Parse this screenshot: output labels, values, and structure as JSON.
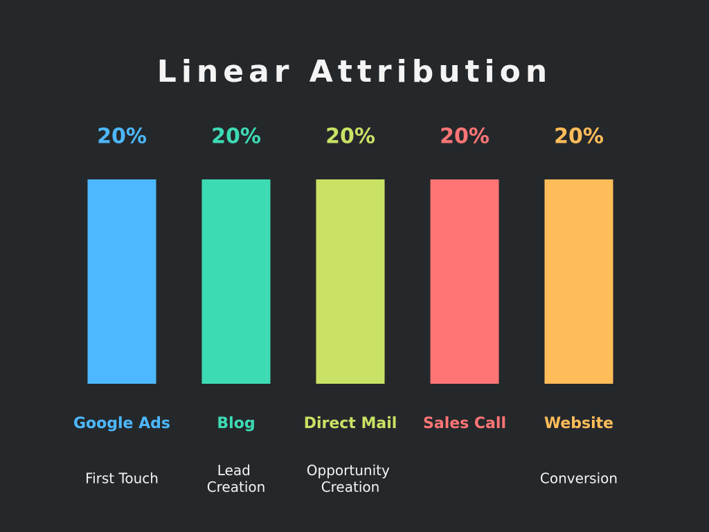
{
  "chart_data": {
    "type": "bar",
    "title": "Linear Attribution",
    "categories": [
      "Google Ads",
      "Blog",
      "Direct Mail",
      "Sales Call",
      "Website"
    ],
    "stages": [
      "First Touch",
      "Lead Creation",
      "Opportunity Creation",
      null,
      "Conversion"
    ],
    "values": [
      20,
      20,
      20,
      20,
      20
    ],
    "value_labels": [
      "20%",
      "20%",
      "20%",
      "20%",
      "20%"
    ],
    "colors": [
      "#4db8ff",
      "#3ddbb4",
      "#c9e265",
      "#ff7575",
      "#ffbd59"
    ]
  }
}
